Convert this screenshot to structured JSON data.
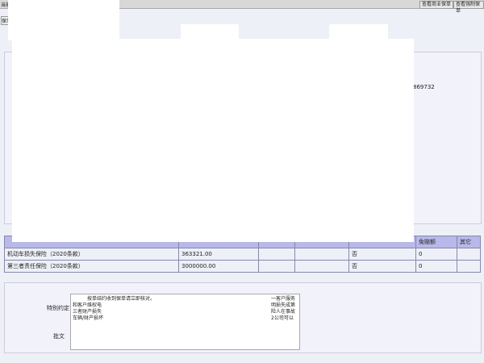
{
  "header": {
    "title": "当前",
    "tab": "保单",
    "links": [
      "查看商业保单",
      "查看强制保单"
    ]
  },
  "info": {
    "code": "869732"
  },
  "table": {
    "headers": [
      "免赔额",
      "其它"
    ],
    "rows": [
      [
        "机动车损失保险（2020条款）",
        "363321.00",
        "否",
        "0"
      ],
      [
        "第三者责任保险（2020条款）",
        "3000000.00",
        "否",
        "0"
      ]
    ]
  },
  "form": {
    "special_label": "特别约定",
    "special_lines": [
      "按单结约收到保单请立即核对。",
      "和客户维权电",
      "三者财产损失",
      "车辆/财产损坏"
    ],
    "special_right": [
      "一客户服务",
      "明损失成第",
      "险人在事故",
      "2公司可以"
    ],
    "endorse_label": "批文"
  }
}
